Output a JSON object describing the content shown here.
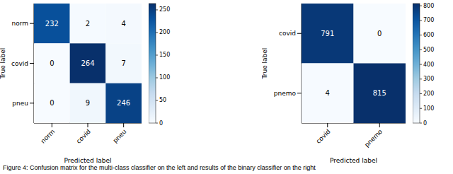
{
  "caption": "Figure 4: Confusion matrix for the multi-class classifier on the left and results of the binary classifier on the right",
  "chart_data": [
    {
      "type": "heatmap",
      "x_label": "Predicted label",
      "y_label": "True label",
      "x_categories": [
        "norm",
        "covid",
        "pneu"
      ],
      "y_categories": [
        "norm",
        "covid",
        "pneu"
      ],
      "values": [
        [
          232,
          2,
          4
        ],
        [
          0,
          264,
          7
        ],
        [
          0,
          9,
          246
        ]
      ],
      "data_labels": true,
      "colorbar_range": [
        0,
        264
      ],
      "colorbar_ticks": [
        0,
        50,
        100,
        150,
        200,
        250
      ]
    },
    {
      "type": "heatmap",
      "x_label": "Predicted label",
      "y_label": "True label",
      "x_categories": [
        "covid",
        "pnemo"
      ],
      "y_categories": [
        "covid",
        "pnemo"
      ],
      "values": [
        [
          791,
          0
        ],
        [
          4,
          815
        ]
      ],
      "data_labels": true,
      "colorbar_range": [
        0,
        815
      ],
      "colorbar_ticks": [
        0,
        100,
        200,
        300,
        400,
        500,
        600,
        700,
        800
      ]
    }
  ]
}
